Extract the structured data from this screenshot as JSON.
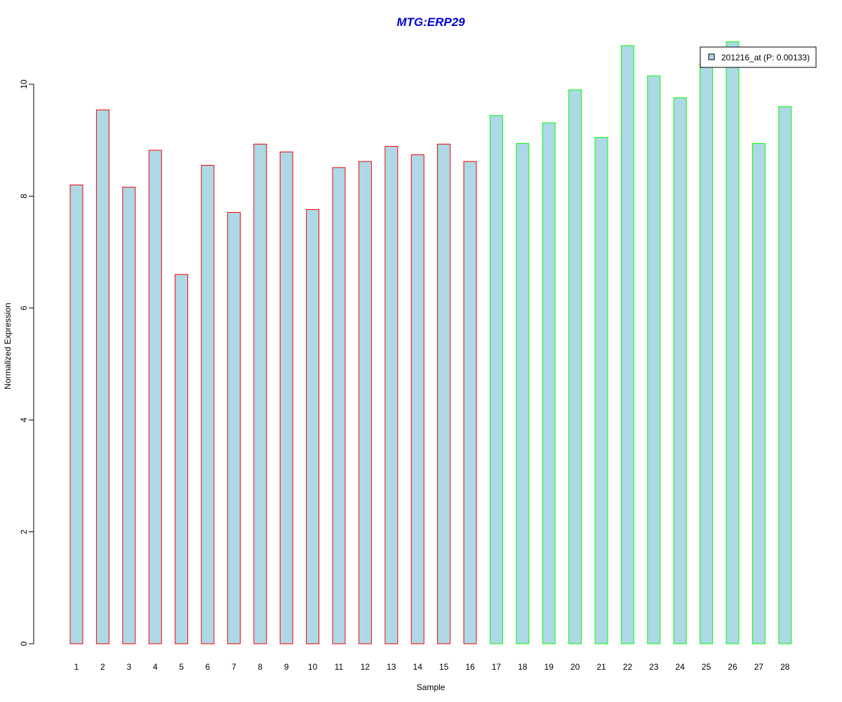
{
  "chart_data": {
    "type": "bar",
    "title": "MTG:ERP29",
    "title_color": "#0000CC",
    "xlabel": "Sample",
    "ylabel": "Normalized Expression",
    "ylim": [
      0,
      10.8
    ],
    "yticks": [
      0,
      2,
      4,
      6,
      8,
      10
    ],
    "grid": false,
    "legend_position": "top-right",
    "bar_fill": "#ADD8E6",
    "categories": [
      "1",
      "2",
      "3",
      "4",
      "5",
      "6",
      "7",
      "8",
      "9",
      "10",
      "11",
      "12",
      "13",
      "14",
      "15",
      "16",
      "17",
      "18",
      "19",
      "20",
      "21",
      "22",
      "23",
      "24",
      "25",
      "26",
      "27",
      "28"
    ],
    "series": [
      {
        "name": "201216_at (P: 0.00133)",
        "values": [
          8.2,
          9.54,
          8.16,
          8.82,
          6.6,
          8.55,
          7.71,
          8.93,
          8.79,
          7.76,
          8.51,
          8.62,
          8.89,
          8.74,
          8.93,
          8.62,
          9.44,
          8.94,
          9.31,
          9.9,
          9.05,
          10.69,
          10.15,
          9.76,
          10.37,
          10.76,
          8.94,
          9.6
        ],
        "outline_colors": [
          "#FF0000",
          "#FF0000",
          "#FF0000",
          "#FF0000",
          "#FF0000",
          "#FF0000",
          "#FF0000",
          "#FF0000",
          "#FF0000",
          "#FF0000",
          "#FF0000",
          "#FF0000",
          "#FF0000",
          "#FF0000",
          "#FF0000",
          "#FF0000",
          "#00FF00",
          "#00FF00",
          "#00FF00",
          "#00FF00",
          "#00FF00",
          "#00FF00",
          "#00FF00",
          "#00FF00",
          "#00FF00",
          "#00FF00",
          "#00FF00",
          "#00FF00"
        ]
      }
    ]
  }
}
